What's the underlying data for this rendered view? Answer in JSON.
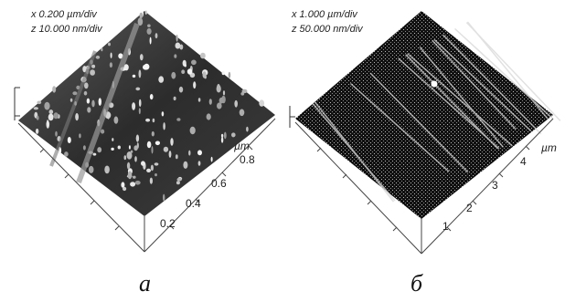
{
  "panels": [
    {
      "scale": {
        "x": "x  0.200 µm/div",
        "z": "z 10.000 nm/div"
      },
      "axis_unit": "µm",
      "ticks": [
        "0.2",
        "0.4",
        "0.6",
        "0.8"
      ],
      "caption": "а"
    },
    {
      "scale": {
        "x": "x  1.000 µm/div",
        "z": "z 50.000 nm/div"
      },
      "axis_unit": "µm",
      "ticks": [
        "1",
        "2",
        "3",
        "4"
      ],
      "caption": "б"
    }
  ]
}
